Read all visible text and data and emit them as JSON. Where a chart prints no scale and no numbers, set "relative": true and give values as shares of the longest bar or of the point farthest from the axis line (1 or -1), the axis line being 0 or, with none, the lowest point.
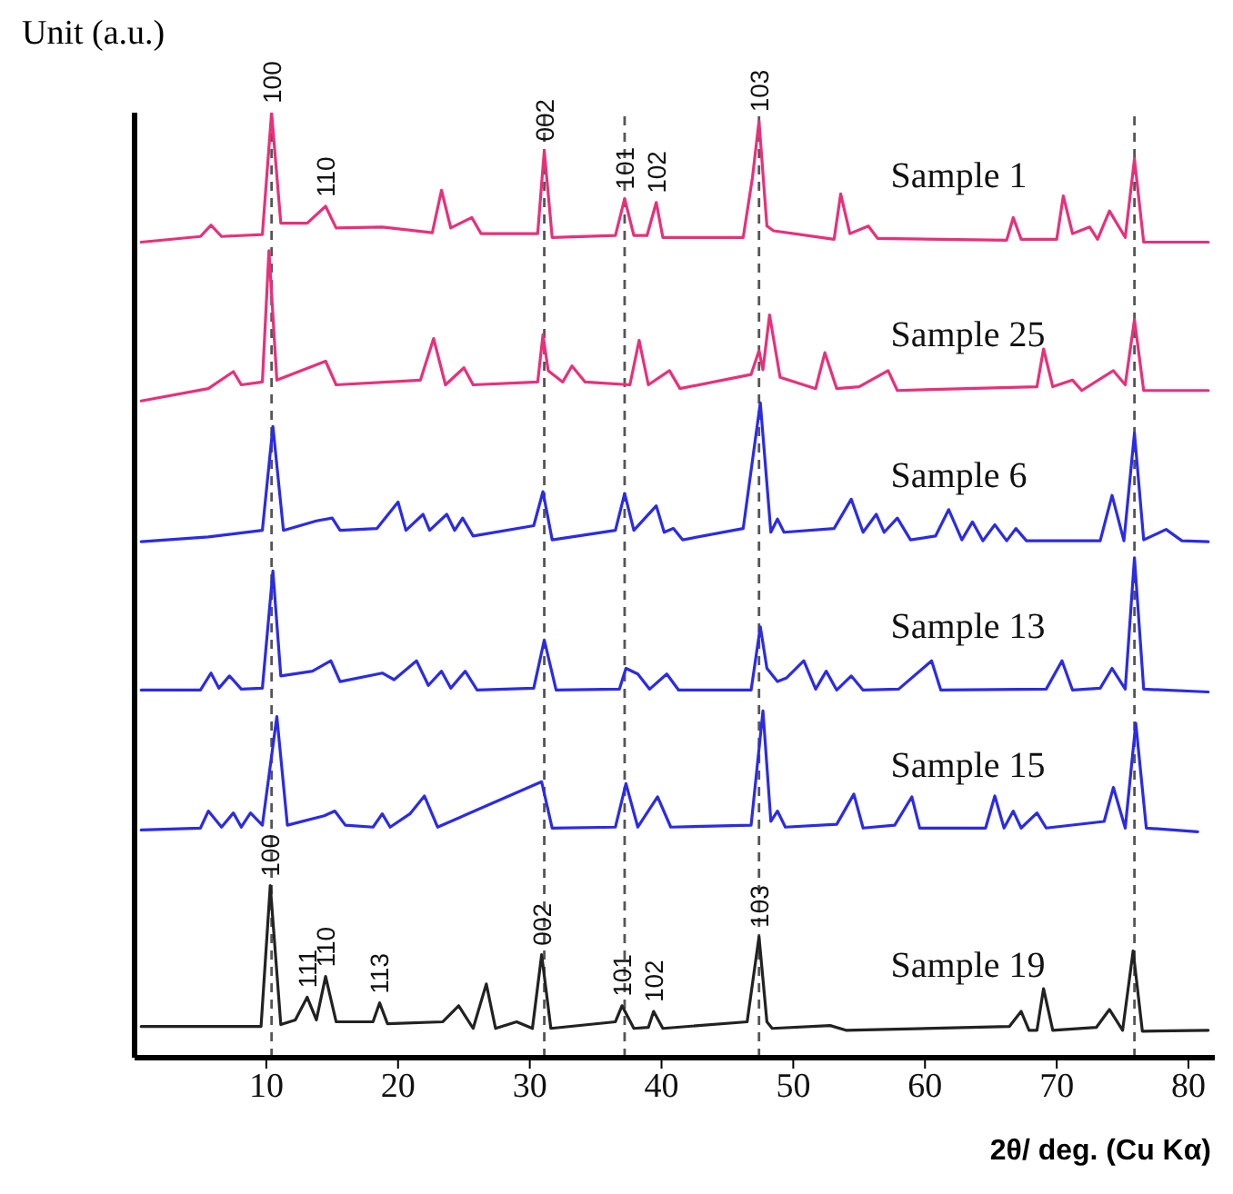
{
  "chart_data": {
    "type": "line",
    "relative": true,
    "ylabel": "Unit (a.u.)",
    "xlabel": "2θ/ deg. (Cu Kα)",
    "xlim": [
      0,
      82
    ],
    "xticks": [
      10,
      20,
      30,
      40,
      50,
      60,
      70,
      80
    ],
    "legend": false,
    "marker": "none",
    "line_style": "solid",
    "series": [
      {
        "name": "Sample 1",
        "color": "#e8307a",
        "x": [
          0.5,
          5.0,
          5.8,
          6.6,
          9.7,
          10.4,
          11.1,
          13.1,
          14.5,
          15.3,
          18.8,
          22.6,
          23.3,
          24.0,
          25.6,
          26.3,
          30.6,
          31.1,
          31.7,
          36.5,
          37.2,
          37.9,
          38.9,
          39.6,
          40.1,
          46.2,
          46.9,
          47.4,
          48.0,
          48.5,
          53.1,
          53.6,
          54.3,
          55.7,
          56.4,
          66.2,
          66.7,
          67.3,
          70.0,
          70.5,
          71.2,
          72.5,
          73.1,
          74.0,
          75.2,
          75.9,
          76.6,
          81.5
        ],
        "values": [
          0.863,
          0.869,
          0.881,
          0.869,
          0.871,
          1.0,
          0.883,
          0.883,
          0.901,
          0.878,
          0.879,
          0.873,
          0.918,
          0.878,
          0.889,
          0.872,
          0.872,
          0.96,
          0.868,
          0.87,
          0.909,
          0.87,
          0.87,
          0.905,
          0.868,
          0.868,
          0.931,
          0.991,
          0.88,
          0.875,
          0.866,
          0.914,
          0.872,
          0.88,
          0.867,
          0.865,
          0.889,
          0.866,
          0.866,
          0.912,
          0.872,
          0.879,
          0.866,
          0.896,
          0.868,
          0.951,
          0.863,
          0.863
        ]
      },
      {
        "name": "Sample 25",
        "color": "#e8307a",
        "x": [
          0.5,
          5.6,
          7.5,
          8.1,
          9.7,
          10.2,
          10.8,
          14.5,
          15.3,
          21.7,
          22.7,
          23.6,
          25.0,
          25.7,
          30.6,
          31.0,
          31.4,
          32.5,
          33.2,
          34.2,
          37.6,
          38.3,
          39.0,
          40.6,
          41.4,
          46.8,
          47.4,
          47.7,
          48.2,
          49.0,
          51.7,
          52.4,
          53.3,
          55.0,
          57.2,
          57.9,
          68.5,
          69.0,
          69.7,
          71.2,
          71.9,
          74.3,
          75.2,
          75.9,
          76.6,
          81.5
        ],
        "values": [
          0.695,
          0.708,
          0.726,
          0.712,
          0.715,
          0.854,
          0.717,
          0.737,
          0.712,
          0.717,
          0.761,
          0.712,
          0.73,
          0.712,
          0.715,
          0.765,
          0.727,
          0.715,
          0.732,
          0.715,
          0.712,
          0.759,
          0.712,
          0.727,
          0.708,
          0.723,
          0.748,
          0.728,
          0.786,
          0.72,
          0.708,
          0.746,
          0.708,
          0.71,
          0.727,
          0.706,
          0.71,
          0.75,
          0.71,
          0.717,
          0.706,
          0.727,
          0.712,
          0.781,
          0.706,
          0.706
        ]
      },
      {
        "name": "Sample 6",
        "color": "#2b2be6",
        "x": [
          0.5,
          5.6,
          9.7,
          10.5,
          11.3,
          13.8,
          15.0,
          15.6,
          18.4,
          20.0,
          20.6,
          21.9,
          22.4,
          23.7,
          24.3,
          24.9,
          25.7,
          30.3,
          31.0,
          31.7,
          36.5,
          37.2,
          37.9,
          39.6,
          40.2,
          40.9,
          41.6,
          46.2,
          47.5,
          48.3,
          48.8,
          49.3,
          53.1,
          54.4,
          55.3,
          56.3,
          56.9,
          57.9,
          58.9,
          60.8,
          61.8,
          62.8,
          63.6,
          64.4,
          65.3,
          66.2,
          66.9,
          67.7,
          73.3,
          74.2,
          75.1,
          75.9,
          76.6,
          78.3,
          79.5,
          81.5
        ],
        "values": [
          0.546,
          0.551,
          0.558,
          0.668,
          0.558,
          0.568,
          0.571,
          0.558,
          0.56,
          0.588,
          0.558,
          0.575,
          0.558,
          0.575,
          0.558,
          0.571,
          0.552,
          0.563,
          0.599,
          0.548,
          0.558,
          0.597,
          0.558,
          0.584,
          0.556,
          0.56,
          0.548,
          0.56,
          0.693,
          0.556,
          0.57,
          0.556,
          0.56,
          0.591,
          0.556,
          0.575,
          0.556,
          0.571,
          0.548,
          0.552,
          0.58,
          0.548,
          0.567,
          0.547,
          0.564,
          0.547,
          0.56,
          0.547,
          0.547,
          0.595,
          0.547,
          0.661,
          0.548,
          0.559,
          0.547,
          0.546
        ]
      },
      {
        "name": "Sample 13",
        "color": "#2b2be6",
        "x": [
          0.5,
          5.0,
          5.8,
          6.4,
          7.2,
          8.1,
          9.7,
          10.5,
          11.1,
          13.5,
          14.9,
          15.6,
          18.8,
          19.7,
          21.4,
          22.3,
          23.3,
          24.0,
          25.1,
          26.0,
          30.3,
          31.1,
          32.0,
          36.8,
          37.3,
          38.2,
          39.1,
          40.4,
          41.3,
          46.8,
          47.5,
          48.0,
          48.8,
          49.5,
          50.8,
          51.7,
          52.5,
          53.3,
          54.4,
          55.3,
          58.0,
          60.5,
          61.2,
          69.2,
          70.4,
          71.2,
          73.3,
          74.2,
          75.2,
          75.9,
          76.6,
          81.5
        ],
        "values": [
          0.389,
          0.389,
          0.407,
          0.391,
          0.404,
          0.39,
          0.391,
          0.515,
          0.404,
          0.409,
          0.42,
          0.398,
          0.407,
          0.4,
          0.42,
          0.394,
          0.409,
          0.391,
          0.409,
          0.389,
          0.391,
          0.442,
          0.389,
          0.39,
          0.412,
          0.406,
          0.39,
          0.406,
          0.389,
          0.389,
          0.456,
          0.412,
          0.398,
          0.402,
          0.42,
          0.39,
          0.409,
          0.389,
          0.404,
          0.389,
          0.39,
          0.42,
          0.389,
          0.39,
          0.42,
          0.389,
          0.391,
          0.412,
          0.39,
          0.529,
          0.39,
          0.387
        ]
      },
      {
        "name": "Sample 15",
        "color": "#2b2be6",
        "x": [
          0.5,
          5.0,
          5.6,
          6.6,
          7.5,
          8.1,
          8.8,
          9.7,
          10.8,
          11.6,
          14.4,
          15.2,
          16.0,
          18.1,
          18.8,
          19.4,
          20.9,
          22.0,
          23.0,
          30.9,
          31.7,
          36.5,
          37.3,
          38.2,
          39.7,
          40.7,
          46.8,
          47.7,
          48.3,
          48.8,
          49.4,
          53.3,
          54.6,
          55.3,
          57.7,
          59.0,
          59.6,
          64.6,
          65.3,
          66.0,
          66.7,
          67.3,
          68.5,
          69.2,
          73.6,
          74.3,
          75.2,
          76.0,
          76.8,
          80.7
        ],
        "values": [
          0.241,
          0.243,
          0.261,
          0.244,
          0.259,
          0.244,
          0.259,
          0.246,
          0.361,
          0.246,
          0.256,
          0.261,
          0.246,
          0.244,
          0.258,
          0.244,
          0.258,
          0.277,
          0.244,
          0.292,
          0.243,
          0.244,
          0.29,
          0.244,
          0.276,
          0.244,
          0.246,
          0.367,
          0.25,
          0.261,
          0.244,
          0.247,
          0.279,
          0.243,
          0.246,
          0.276,
          0.243,
          0.243,
          0.277,
          0.243,
          0.261,
          0.243,
          0.259,
          0.243,
          0.25,
          0.286,
          0.243,
          0.354,
          0.243,
          0.239
        ]
      },
      {
        "name": "Sample 19",
        "color": "#222222",
        "x": [
          0.5,
          9.6,
          10.3,
          11.1,
          12.2,
          13.1,
          13.8,
          14.5,
          15.3,
          18.1,
          18.6,
          19.2,
          23.4,
          24.6,
          25.7,
          26.7,
          27.4,
          29.0,
          30.2,
          30.9,
          31.6,
          36.5,
          37.0,
          37.9,
          39.0,
          39.4,
          40.1,
          46.5,
          47.4,
          48.0,
          48.4,
          52.8,
          54.0,
          66.4,
          67.3,
          67.9,
          68.5,
          69.0,
          69.7,
          73.0,
          74.0,
          75.0,
          75.8,
          76.5,
          81.5
        ],
        "values": [
          0.033,
          0.033,
          0.182,
          0.035,
          0.04,
          0.064,
          0.04,
          0.086,
          0.038,
          0.038,
          0.058,
          0.036,
          0.038,
          0.055,
          0.031,
          0.078,
          0.031,
          0.038,
          0.031,
          0.109,
          0.031,
          0.038,
          0.055,
          0.031,
          0.032,
          0.049,
          0.031,
          0.038,
          0.128,
          0.038,
          0.031,
          0.034,
          0.029,
          0.033,
          0.049,
          0.029,
          0.029,
          0.073,
          0.029,
          0.032,
          0.051,
          0.029,
          0.113,
          0.028,
          0.029
        ]
      }
    ],
    "ref_lines": [
      {
        "axis": "x",
        "value": 10.4,
        "color": "#555555",
        "line_style": "dashed"
      },
      {
        "axis": "x",
        "value": 31.1,
        "color": "#555555",
        "line_style": "dashed"
      },
      {
        "axis": "x",
        "value": 37.2,
        "color": "#555555",
        "line_style": "dashed"
      },
      {
        "axis": "x",
        "value": 47.4,
        "color": "#555555",
        "line_style": "dashed"
      },
      {
        "axis": "x",
        "value": 75.9,
        "color": "#555555",
        "line_style": "dashed"
      }
    ],
    "annotations": [
      {
        "text": "100",
        "x": 10.4,
        "y": 1.0
      },
      {
        "text": "110",
        "x": 14.5,
        "y": 0.901
      },
      {
        "text": "002",
        "x": 31.1,
        "y": 0.96
      },
      {
        "text": "101",
        "x": 37.2,
        "y": 0.909
      },
      {
        "text": "102",
        "x": 39.6,
        "y": 0.905
      },
      {
        "text": "103",
        "x": 47.4,
        "y": 0.991
      },
      {
        "text": "100",
        "x": 10.3,
        "y": 0.182
      },
      {
        "text": "111",
        "x": 13.1,
        "y": 0.064
      },
      {
        "text": "110",
        "x": 14.5,
        "y": 0.086
      },
      {
        "text": "113",
        "x": 18.6,
        "y": 0.058
      },
      {
        "text": "002",
        "x": 30.9,
        "y": 0.109
      },
      {
        "text": "101",
        "x": 37.0,
        "y": 0.055
      },
      {
        "text": "102",
        "x": 39.4,
        "y": 0.049
      },
      {
        "text": "103",
        "x": 47.4,
        "y": 0.128
      }
    ]
  }
}
